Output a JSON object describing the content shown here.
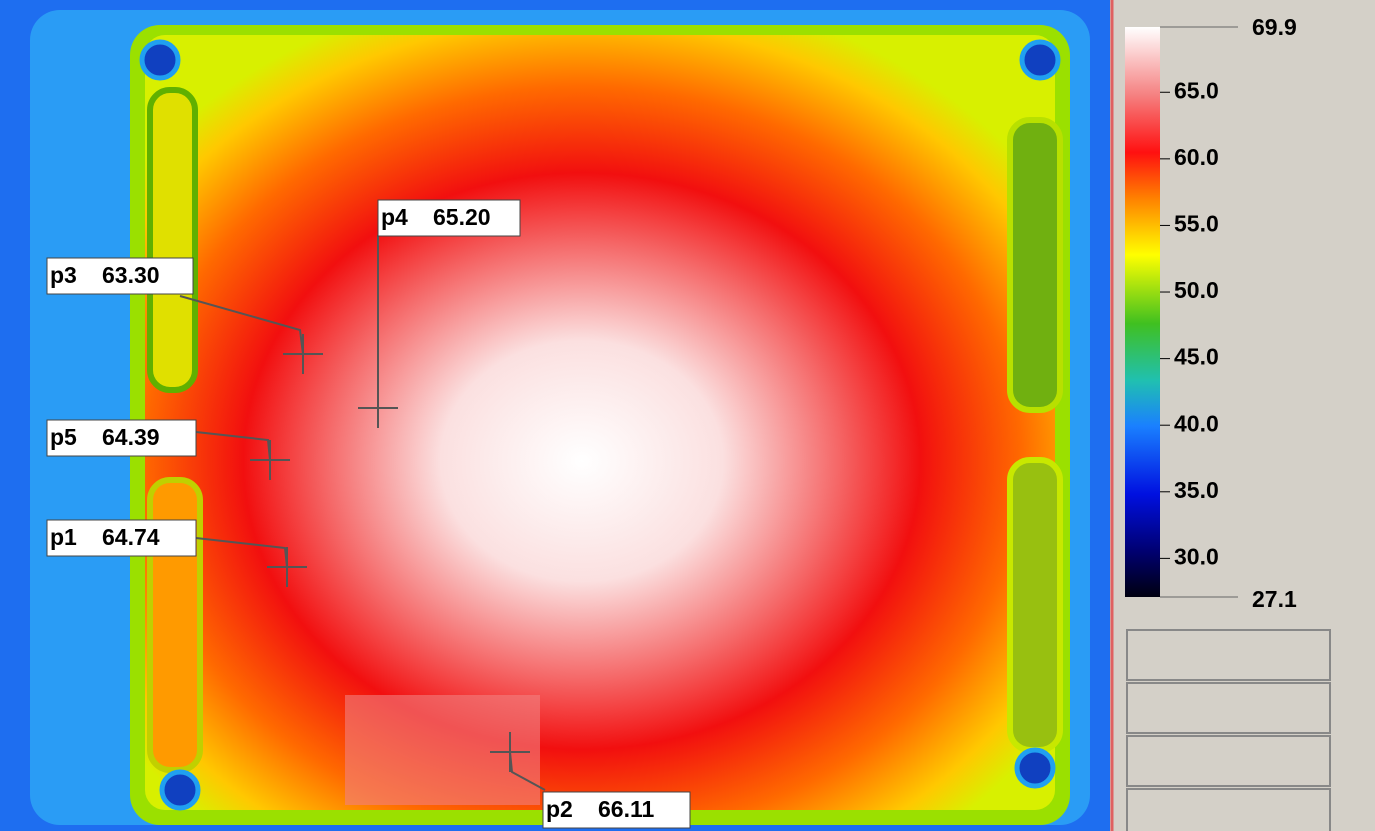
{
  "points": [
    {
      "name": "p3",
      "reading": "63.30"
    },
    {
      "name": "p4",
      "reading": "65.20"
    },
    {
      "name": "p5",
      "reading": "64.39"
    },
    {
      "name": "p1",
      "reading": "64.74"
    },
    {
      "name": "p2",
      "reading": "66.11"
    }
  ],
  "colorbar": {
    "max": 69.9,
    "min": 27.1,
    "ticks": [
      {
        "value": 65,
        "label": "65.0"
      },
      {
        "value": 60,
        "label": "60.0"
      },
      {
        "value": 55,
        "label": "55.0"
      },
      {
        "value": 50,
        "label": "50.0"
      },
      {
        "value": 45,
        "label": "45.0"
      },
      {
        "value": 40,
        "label": "40.0"
      },
      {
        "value": 35,
        "label": "35.0"
      },
      {
        "value": 30,
        "label": "30.0"
      }
    ]
  }
}
